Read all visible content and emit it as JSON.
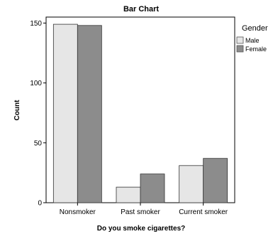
{
  "chart_data": {
    "type": "bar",
    "title": "Bar Chart",
    "xlabel": "Do you smoke cigarettes?",
    "ylabel": "Count",
    "categories": [
      "Nonsmoker",
      "Past smoker",
      "Current smoker"
    ],
    "series": [
      {
        "name": "Male",
        "values": [
          149,
          13,
          31
        ],
        "color": "#e6e6e6"
      },
      {
        "name": "Female",
        "values": [
          148,
          24,
          37
        ],
        "color": "#8c8c8c"
      }
    ],
    "ylim": [
      0,
      155
    ],
    "yticks": [
      0,
      50,
      100,
      150
    ],
    "grid": false,
    "legend": {
      "title": "Gender",
      "position": "right"
    }
  }
}
